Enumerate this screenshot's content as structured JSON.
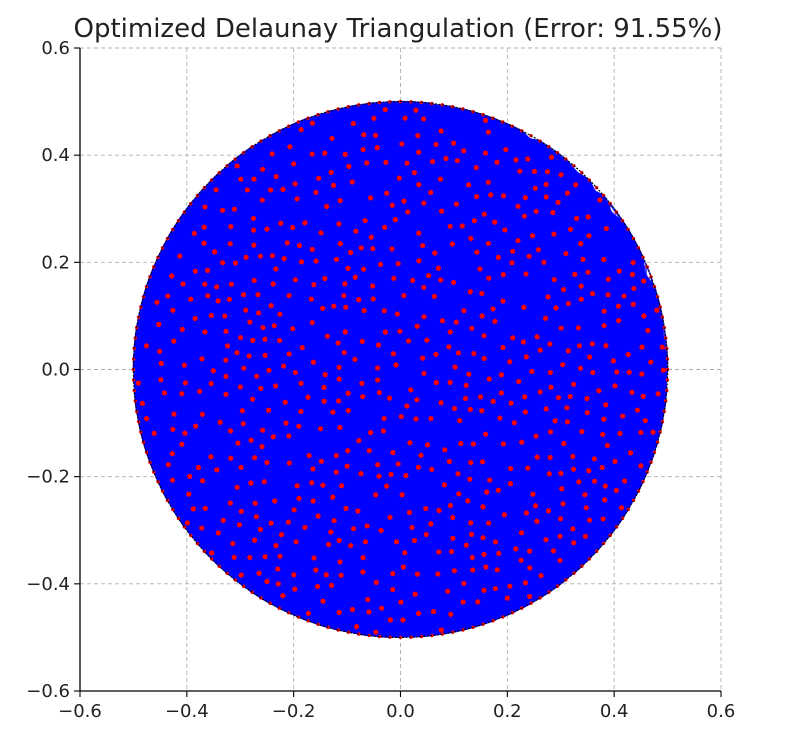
{
  "chart_data": {
    "type": "scatter",
    "title": "Optimized Delaunay Triangulation (Error: 91.55%)",
    "xlabel": "",
    "ylabel": "",
    "xlim": [
      -0.6,
      0.6
    ],
    "ylim": [
      -0.6,
      0.6
    ],
    "x_ticks": [
      -0.6,
      -0.4,
      -0.2,
      0.0,
      0.2,
      0.4,
      0.6
    ],
    "y_ticks": [
      -0.6,
      -0.4,
      -0.2,
      0.0,
      0.2,
      0.4,
      0.6
    ],
    "x_tick_labels": [
      "−0.6",
      "−0.4",
      "−0.2",
      "0.0",
      "0.2",
      "0.4",
      "0.6"
    ],
    "y_tick_labels": [
      "−0.6",
      "−0.4",
      "−0.2",
      "0.0",
      "0.2",
      "0.4",
      "0.6"
    ],
    "grid": true,
    "domain": {
      "shape": "circle",
      "center": [
        0.0,
        0.0
      ],
      "radius": 0.5
    },
    "mesh": {
      "boundary_points": 160,
      "interior_points": 700,
      "edge_color": "#0000ff",
      "point_color": "#ff0000",
      "boundary_color": "#000000"
    }
  }
}
